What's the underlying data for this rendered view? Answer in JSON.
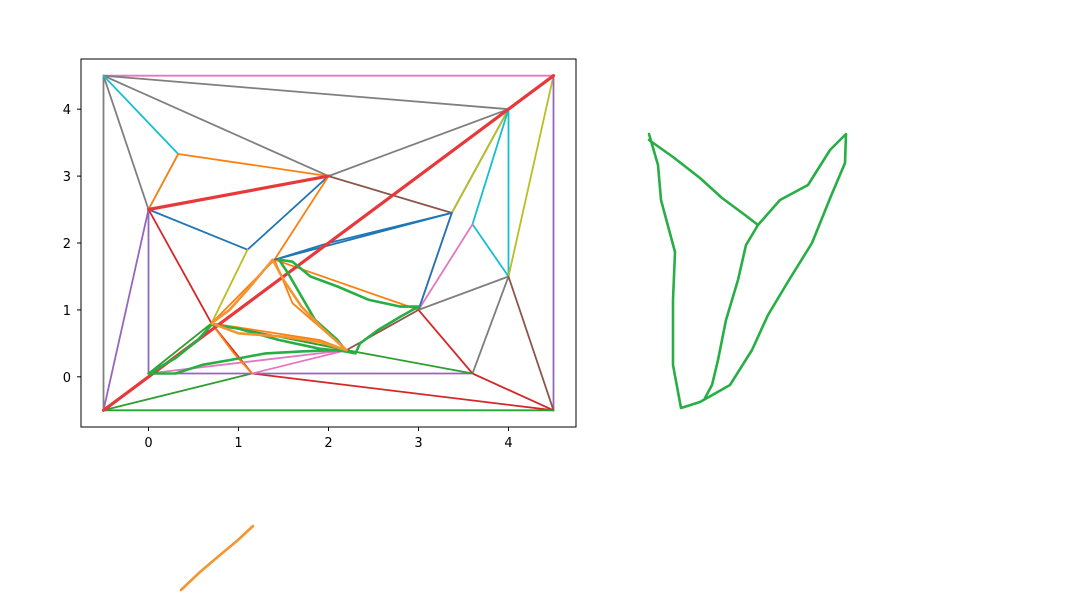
{
  "chart_data": {
    "type": "line",
    "title": "",
    "xlabel": "",
    "ylabel": "",
    "xlim": [
      -0.75,
      4.75
    ],
    "ylim": [
      -0.75,
      4.75
    ],
    "xticks": [
      "0",
      "1",
      "2",
      "3",
      "4"
    ],
    "yticks": [
      "0",
      "1",
      "2",
      "3",
      "4"
    ],
    "grid": false,
    "triangulation_edges": [
      {
        "color": "#e377c2",
        "points": [
          [
            -0.5,
            4.5
          ],
          [
            4.5,
            4.5
          ]
        ]
      },
      {
        "color": "#7f7f7f",
        "points": [
          [
            -0.5,
            4.5
          ],
          [
            4.0,
            4.0
          ],
          [
            4.5,
            4.5
          ]
        ]
      },
      {
        "color": "#7f7f7f",
        "points": [
          [
            -0.5,
            4.5
          ],
          [
            2.0,
            3.0
          ],
          [
            4.0,
            4.0
          ]
        ]
      },
      {
        "color": "#7f7f7f",
        "points": [
          [
            -0.5,
            -0.5
          ],
          [
            -0.5,
            4.5
          ],
          [
            0.0,
            2.5
          ]
        ]
      },
      {
        "color": "#17becf",
        "points": [
          [
            -0.5,
            4.5
          ],
          [
            0.33,
            3.33
          ],
          [
            0.0,
            2.5
          ]
        ]
      },
      {
        "color": "#ff7f0e",
        "points": [
          [
            0.33,
            3.33
          ],
          [
            2.0,
            3.0
          ]
        ]
      },
      {
        "color": "#ff7f0e",
        "points": [
          [
            0.0,
            2.5
          ],
          [
            0.33,
            3.33
          ]
        ]
      },
      {
        "color": "#1f77b4",
        "points": [
          [
            0.0,
            2.5
          ],
          [
            1.1,
            1.9
          ],
          [
            2.0,
            3.0
          ]
        ]
      },
      {
        "color": "#1f77b4",
        "points": [
          [
            1.4,
            1.75
          ],
          [
            3.37,
            2.45
          ],
          [
            4.0,
            4.0
          ]
        ]
      },
      {
        "color": "#bcbd22",
        "points": [
          [
            3.37,
            2.45
          ],
          [
            4.0,
            4.0
          ],
          [
            4.5,
            4.5
          ]
        ]
      },
      {
        "color": "#17becf",
        "points": [
          [
            4.0,
            4.0
          ],
          [
            4.0,
            1.5
          ],
          [
            3.6,
            2.28
          ],
          [
            4.0,
            4.0
          ]
        ]
      },
      {
        "color": "#bcbd22",
        "points": [
          [
            4.5,
            4.5
          ],
          [
            4.0,
            1.5
          ]
        ]
      },
      {
        "color": "#9467bd",
        "points": [
          [
            4.5,
            4.5
          ],
          [
            4.5,
            -0.5
          ]
        ]
      },
      {
        "color": "#8c564b",
        "points": [
          [
            2.0,
            3.0
          ],
          [
            3.37,
            2.45
          ]
        ]
      },
      {
        "color": "#e377c2",
        "points": [
          [
            3.37,
            2.45
          ],
          [
            3.0,
            1.0
          ],
          [
            3.6,
            2.28
          ]
        ]
      },
      {
        "color": "#1f77b4",
        "points": [
          [
            3.37,
            2.45
          ],
          [
            3.0,
            1.0
          ]
        ]
      },
      {
        "color": "#7f7f7f",
        "points": [
          [
            3.0,
            1.0
          ],
          [
            4.0,
            1.5
          ],
          [
            3.6,
            0.05
          ]
        ]
      },
      {
        "color": "#8c564b",
        "points": [
          [
            4.0,
            1.5
          ],
          [
            4.5,
            -0.5
          ]
        ]
      },
      {
        "color": "#d62728",
        "points": [
          [
            3.0,
            1.0
          ],
          [
            3.6,
            0.05
          ],
          [
            4.5,
            -0.5
          ]
        ]
      },
      {
        "color": "#d62728",
        "points": [
          [
            1.15,
            0.05
          ],
          [
            4.5,
            -0.5
          ]
        ]
      },
      {
        "color": "#2ca02c",
        "points": [
          [
            -0.5,
            -0.5
          ],
          [
            4.5,
            -0.5
          ]
        ]
      },
      {
        "color": "#2ca02c",
        "points": [
          [
            -0.5,
            -0.5
          ],
          [
            1.15,
            0.05
          ]
        ]
      },
      {
        "color": "#9467bd",
        "points": [
          [
            0.0,
            0.05
          ],
          [
            3.6,
            0.05
          ]
        ]
      },
      {
        "color": "#9467bd",
        "points": [
          [
            -0.5,
            -0.5
          ],
          [
            0.0,
            2.5
          ],
          [
            0.0,
            0.05
          ]
        ]
      },
      {
        "color": "#d62728",
        "points": [
          [
            0.0,
            2.5
          ],
          [
            0.7,
            0.8
          ],
          [
            1.15,
            0.05
          ]
        ]
      },
      {
        "color": "#bcbd22",
        "points": [
          [
            0.7,
            0.8
          ],
          [
            1.1,
            1.9
          ]
        ]
      },
      {
        "color": "#ff7f0e",
        "points": [
          [
            0.7,
            0.8
          ],
          [
            1.4,
            1.75
          ],
          [
            2.0,
            3.0
          ]
        ]
      },
      {
        "color": "#ff7f0e",
        "points": [
          [
            1.4,
            1.75
          ],
          [
            3.0,
            1.0
          ]
        ]
      },
      {
        "color": "#ff7f0e",
        "points": [
          [
            1.4,
            1.75
          ],
          [
            1.6,
            1.1
          ],
          [
            2.2,
            0.4
          ]
        ]
      },
      {
        "color": "#8c564b",
        "points": [
          [
            0.7,
            0.8
          ],
          [
            2.2,
            0.4
          ],
          [
            3.0,
            1.0
          ]
        ]
      },
      {
        "color": "#2ca02c",
        "points": [
          [
            0.0,
            0.05
          ],
          [
            0.7,
            0.8
          ],
          [
            2.2,
            0.4
          ],
          [
            3.6,
            0.05
          ]
        ]
      },
      {
        "color": "#e377c2",
        "points": [
          [
            0.0,
            0.05
          ],
          [
            2.2,
            0.4
          ],
          [
            1.15,
            0.05
          ]
        ]
      },
      {
        "color": "#ff7f0e",
        "points": [
          [
            0.7,
            0.8
          ],
          [
            1.9,
            0.55
          ],
          [
            2.2,
            0.4
          ]
        ]
      },
      {
        "color": "#ff7f0e",
        "points": [
          [
            0.7,
            0.8
          ],
          [
            0.95,
            0.35
          ],
          [
            1.15,
            0.05
          ]
        ]
      },
      {
        "color": "#1f77b4",
        "points": [
          [
            1.4,
            1.75
          ],
          [
            2.0,
            2.0
          ],
          [
            3.37,
            2.45
          ]
        ]
      }
    ],
    "highlight_paths": [
      {
        "color": "#e8383a",
        "points": [
          [
            -0.5,
            -0.5
          ],
          [
            4.5,
            4.5
          ]
        ]
      },
      {
        "color": "#e8383a",
        "points": [
          [
            0.0,
            2.5
          ],
          [
            2.0,
            3.0
          ]
        ]
      },
      {
        "color": "#27ae45",
        "points": [
          [
            0.0,
            0.05
          ],
          [
            0.3,
            0.28
          ],
          [
            0.55,
            0.55
          ],
          [
            0.7,
            0.78
          ],
          [
            1.0,
            0.72
          ],
          [
            1.45,
            0.55
          ],
          [
            1.9,
            0.42
          ],
          [
            2.2,
            0.38
          ],
          [
            2.1,
            0.55
          ],
          [
            1.85,
            0.85
          ],
          [
            1.7,
            1.2
          ],
          [
            1.55,
            1.55
          ],
          [
            1.45,
            1.75
          ],
          [
            1.6,
            1.72
          ],
          [
            1.8,
            1.5
          ],
          [
            2.1,
            1.35
          ],
          [
            2.45,
            1.15
          ],
          [
            2.8,
            1.05
          ],
          [
            3.0,
            1.05
          ],
          [
            2.8,
            0.9
          ],
          [
            2.55,
            0.7
          ],
          [
            2.35,
            0.5
          ],
          [
            2.3,
            0.35
          ],
          [
            2.1,
            0.4
          ],
          [
            1.7,
            0.38
          ],
          [
            1.3,
            0.35
          ],
          [
            0.9,
            0.25
          ],
          [
            0.6,
            0.18
          ],
          [
            0.3,
            0.05
          ],
          [
            0.0,
            0.05
          ]
        ]
      },
      {
        "color": "#f39531",
        "points": [
          [
            0.7,
            0.8
          ],
          [
            1.0,
            0.65
          ],
          [
            1.5,
            0.6
          ],
          [
            1.9,
            0.52
          ],
          [
            2.2,
            0.4
          ],
          [
            1.95,
            0.7
          ],
          [
            1.7,
            1.05
          ],
          [
            1.5,
            1.45
          ],
          [
            1.38,
            1.75
          ],
          [
            1.1,
            1.3
          ],
          [
            0.9,
            1.0
          ],
          [
            0.7,
            0.8
          ]
        ]
      }
    ],
    "detached_shapes": [
      {
        "color": "#27ae45",
        "points": [
          [
            649,
            134
          ],
          [
            658,
            165
          ],
          [
            661,
            200
          ],
          [
            675,
            252
          ],
          [
            673,
            300
          ],
          [
            673,
            365
          ],
          [
            681,
            408
          ],
          [
            700,
            402
          ],
          [
            730,
            385
          ],
          [
            752,
            350
          ],
          [
            768,
            315
          ],
          [
            789,
            280
          ],
          [
            812,
            243
          ],
          [
            831,
            196
          ],
          [
            845,
            163
          ],
          [
            846,
            134
          ],
          [
            830,
            150
          ],
          [
            808,
            185
          ],
          [
            780,
            200
          ],
          [
            758,
            225
          ],
          [
            745,
            215
          ],
          [
            722,
            198
          ],
          [
            700,
            178
          ],
          [
            673,
            157
          ],
          [
            649,
            140
          ]
        ]
      },
      {
        "color": "#27ae45",
        "points": [
          [
            758,
            225
          ],
          [
            746,
            245
          ],
          [
            738,
            280
          ],
          [
            726,
            320
          ],
          [
            718,
            360
          ],
          [
            712,
            385
          ],
          [
            705,
            398
          ]
        ]
      },
      {
        "color": "#f39531",
        "points": [
          [
            181,
            590
          ],
          [
            200,
            572
          ],
          [
            220,
            555
          ],
          [
            238,
            540
          ],
          [
            253,
            526
          ]
        ]
      }
    ]
  }
}
